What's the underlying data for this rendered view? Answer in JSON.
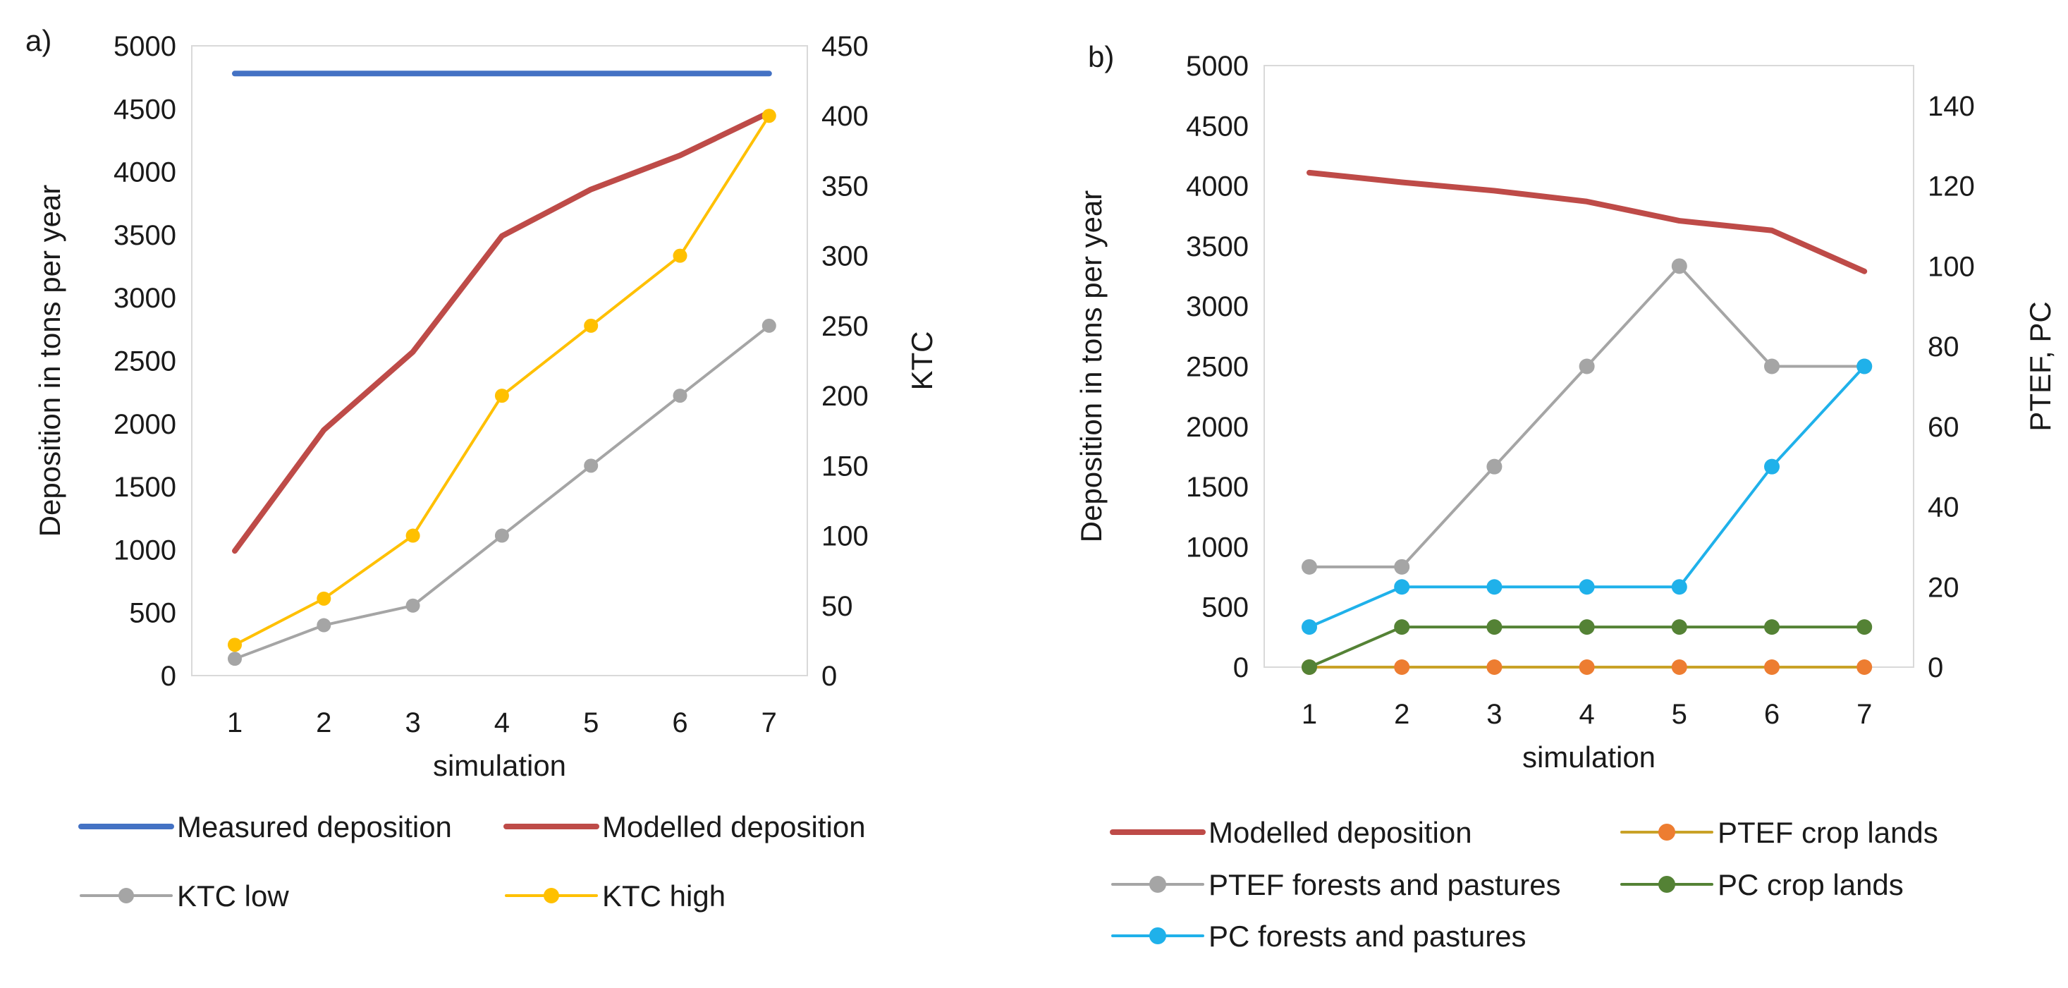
{
  "chart_data": [
    {
      "panel_label": "a)",
      "type": "line",
      "x": [
        1,
        2,
        3,
        4,
        5,
        6,
        7
      ],
      "xticks": [
        "1",
        "2",
        "3",
        "4",
        "5",
        "6",
        "7"
      ],
      "xlabel": "simulation",
      "ylabel": "Deposition in tons per year",
      "ylim": [
        0,
        5000
      ],
      "yticks": [
        "0",
        "500",
        "1000",
        "1500",
        "2000",
        "2500",
        "3000",
        "3500",
        "4000",
        "4500",
        "5000"
      ],
      "y2label": "KTC",
      "y2lim": [
        0,
        450
      ],
      "y2ticks": [
        "0",
        "50",
        "100",
        "150",
        "200",
        "250",
        "300",
        "350",
        "400",
        "450"
      ],
      "series": [
        {
          "name": "Measured deposition",
          "axis": "left",
          "values": [
            4780,
            4780,
            4780,
            4780,
            4780,
            4780,
            4780
          ],
          "color": "#4472C4",
          "markers": false
        },
        {
          "name": "Modelled deposition",
          "axis": "left",
          "values": [
            990,
            1950,
            2570,
            3490,
            3860,
            4130,
            4470
          ],
          "color": "#BE4B48",
          "markers": false
        },
        {
          "name": "KTC low",
          "axis": "right",
          "values": [
            12,
            36,
            50,
            100,
            150,
            200,
            250
          ],
          "color": "#A5A5A5",
          "markers": true
        },
        {
          "name": "KTC high",
          "axis": "right",
          "values": [
            22,
            55,
            100,
            200,
            250,
            300,
            400
          ],
          "color": "#FFC000",
          "markers": true
        }
      ]
    },
    {
      "panel_label": "b)",
      "type": "line",
      "x": [
        1,
        2,
        3,
        4,
        5,
        6,
        7
      ],
      "xticks": [
        "1",
        "2",
        "3",
        "4",
        "5",
        "6",
        "7"
      ],
      "xlabel": "simulation",
      "ylabel": "Deposition in tons per year",
      "ylim": [
        0,
        5000
      ],
      "yticks": [
        "0",
        "500",
        "1000",
        "1500",
        "2000",
        "2500",
        "3000",
        "3500",
        "4000",
        "4500",
        "5000"
      ],
      "y2label": "PTEF, PC",
      "y2lim": [
        0,
        150
      ],
      "y2ticks": [
        "0",
        "20",
        "40",
        "60",
        "80",
        "100",
        "120",
        "140"
      ],
      "series": [
        {
          "name": "Modelled deposition",
          "axis": "left",
          "values": [
            4110,
            4030,
            3960,
            3870,
            3710,
            3630,
            3290
          ],
          "color": "#BE4B48",
          "markers": false
        },
        {
          "name": "PTEF crop lands",
          "axis": "right",
          "values": [
            0,
            0,
            0,
            0,
            0,
            0,
            0
          ],
          "color": "#ED7D31",
          "markers": true,
          "line_color": "#C9A227"
        },
        {
          "name": "PTEF forests and pastures",
          "axis": "right",
          "values": [
            25,
            25,
            50,
            75,
            100,
            75,
            75
          ],
          "color": "#A5A5A5",
          "markers": true
        },
        {
          "name": "PC crop lands",
          "axis": "right",
          "values": [
            0,
            10,
            10,
            10,
            10,
            10,
            10
          ],
          "color": "#548235",
          "markers": true
        },
        {
          "name": "PC forests and pastures",
          "axis": "right",
          "values": [
            10,
            20,
            20,
            20,
            20,
            50,
            75
          ],
          "color": "#1FB1EA",
          "markers": true
        }
      ]
    }
  ]
}
